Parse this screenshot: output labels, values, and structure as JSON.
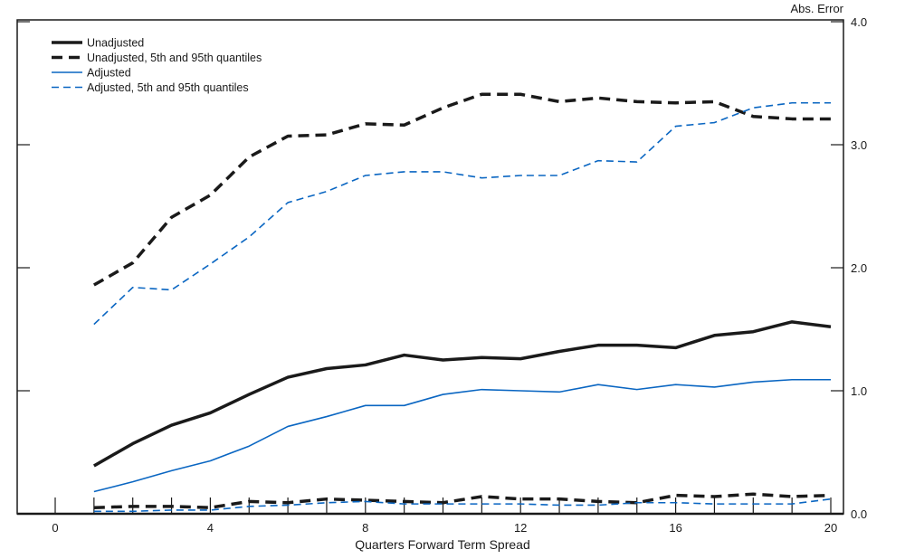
{
  "chart_data": {
    "type": "line",
    "title": "",
    "xlabel": "Quarters Forward Term Spread",
    "ylabel": "Abs. Error",
    "xlim": [
      -1,
      20.3
    ],
    "ylim": [
      0,
      4.0
    ],
    "x_ticks": [
      "0",
      "4",
      "8",
      "12",
      "16",
      "20"
    ],
    "y_ticks": [
      "0.0",
      "1.0",
      "2.0",
      "3.0",
      "4.0"
    ],
    "y_axis_side": "right",
    "grid": false,
    "legend_position": "top-left",
    "x": [
      1,
      2,
      3,
      4,
      5,
      6,
      7,
      8,
      9,
      10,
      11,
      12,
      13,
      14,
      15,
      16,
      17,
      18,
      19,
      20
    ],
    "series": [
      {
        "name": "Unadjusted",
        "color": "#1a1a1a",
        "style": "solid-thick",
        "values": [
          0.39,
          0.57,
          0.72,
          0.82,
          0.97,
          1.11,
          1.18,
          1.21,
          1.29,
          1.25,
          1.27,
          1.26,
          1.32,
          1.37,
          1.37,
          1.35,
          1.45,
          1.48,
          1.56,
          1.52
        ]
      },
      {
        "name": "Unadjusted, 5th and 95th quantiles",
        "color": "#1a1a1a",
        "style": "dashed-thick",
        "values": [
          1.86,
          2.04,
          2.41,
          2.59,
          2.9,
          3.07,
          3.08,
          3.17,
          3.16,
          3.3,
          3.41,
          3.41,
          3.35,
          3.38,
          3.35,
          3.34,
          3.35,
          3.23,
          3.21,
          3.21
        ],
        "lower_values": [
          0.05,
          0.06,
          0.06,
          0.05,
          0.1,
          0.09,
          0.12,
          0.11,
          0.1,
          0.09,
          0.14,
          0.12,
          0.12,
          0.1,
          0.09,
          0.15,
          0.14,
          0.16,
          0.14,
          0.15
        ]
      },
      {
        "name": "Adjusted",
        "color": "#0a66c2",
        "style": "solid-thin",
        "values": [
          0.18,
          0.26,
          0.35,
          0.43,
          0.55,
          0.71,
          0.79,
          0.88,
          0.88,
          0.97,
          1.01,
          1.0,
          0.99,
          1.05,
          1.01,
          1.05,
          1.03,
          1.07,
          1.09,
          1.09
        ]
      },
      {
        "name": "Adjusted, 5th and 95th quantiles",
        "color": "#0a66c2",
        "style": "dashed-thin",
        "values": [
          1.54,
          1.84,
          1.82,
          2.03,
          2.25,
          2.53,
          2.62,
          2.75,
          2.78,
          2.78,
          2.73,
          2.75,
          2.75,
          2.87,
          2.86,
          3.15,
          3.18,
          3.3,
          3.34,
          3.34
        ],
        "lower_values": [
          0.02,
          0.02,
          0.03,
          0.03,
          0.06,
          0.07,
          0.09,
          0.1,
          0.08,
          0.08,
          0.08,
          0.08,
          0.07,
          0.07,
          0.09,
          0.09,
          0.08,
          0.08,
          0.08,
          0.12
        ]
      }
    ]
  }
}
